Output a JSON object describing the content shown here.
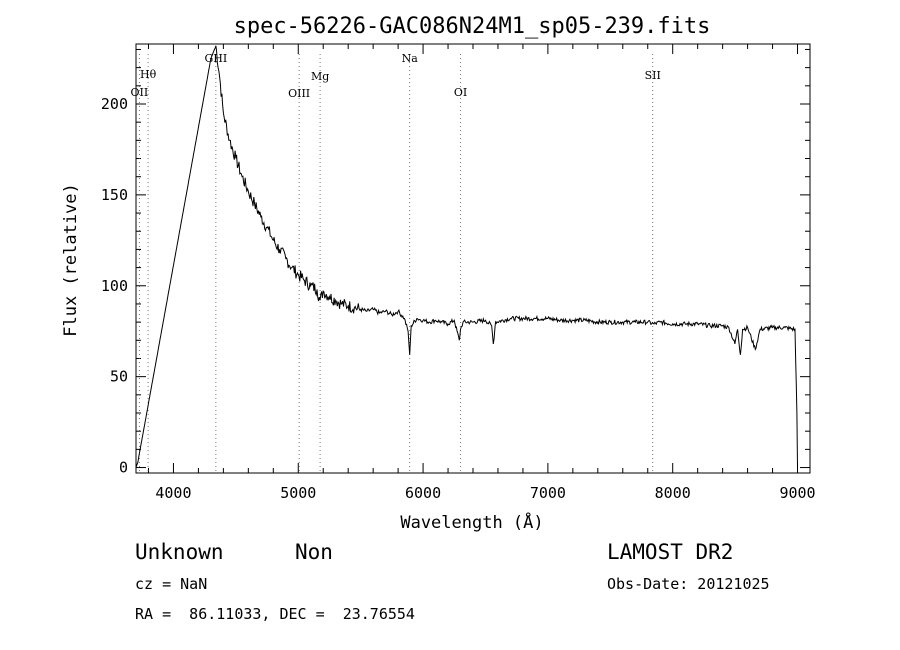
{
  "chart_data": {
    "type": "line",
    "title": "spec-56226-GAC086N24M1_sp05-239.fits",
    "xlabel": "Wavelength (Å)",
    "ylabel": "Flux (relative)",
    "xlim": [
      3700,
      9100
    ],
    "ylim": [
      -3,
      233
    ],
    "xticks": [
      4000,
      5000,
      6000,
      7000,
      8000,
      9000
    ],
    "yticks": [
      0,
      50,
      100,
      150,
      200
    ],
    "grid": false,
    "lines": [
      {
        "label": "Hθ",
        "x": 3797
      },
      {
        "label": "OII",
        "x": 3727
      },
      {
        "label": "GHI",
        "x": 4340
      },
      {
        "label": "OIII",
        "x": 5007
      },
      {
        "label": "Mg",
        "x": 5175
      },
      {
        "label": "Na",
        "x": 5893
      },
      {
        "label": "OI",
        "x": 6300
      },
      {
        "label": "SII",
        "x": 7840
      }
    ],
    "series": [
      {
        "x": [
          3700,
          3715,
          3720,
          4300,
          4340,
          4370,
          4400,
          4450,
          4500,
          4550,
          4600,
          4650,
          4700,
          4750,
          4800,
          4850,
          4900,
          4950,
          5000,
          5050,
          5100,
          5150,
          5175,
          5200,
          5250,
          5300,
          5350,
          5400,
          5450,
          5500,
          5550,
          5600,
          5650,
          5700,
          5750,
          5800,
          5850,
          5880,
          5893,
          5905,
          5950,
          6000,
          6050,
          6100,
          6150,
          6200,
          6250,
          6290,
          6300,
          6320,
          6400,
          6500,
          6550,
          6563,
          6580,
          6700,
          6800,
          6900,
          7000,
          7100,
          7200,
          7300,
          7400,
          7500,
          7600,
          7700,
          7800,
          7850,
          7900,
          8000,
          8100,
          8200,
          8300,
          8400,
          8450,
          8498,
          8520,
          8542,
          8560,
          8600,
          8662,
          8700,
          8800,
          8900,
          8980,
          8995,
          9000
        ],
        "y": [
          0,
          3,
          5,
          225,
          232,
          215,
          195,
          180,
          170,
          160,
          152,
          145,
          138,
          132,
          125,
          120,
          115,
          110,
          106,
          103,
          100,
          98,
          92,
          97,
          94,
          92,
          90,
          89,
          88,
          87,
          86,
          87,
          85,
          86,
          84,
          86,
          82,
          75,
          62,
          78,
          82,
          81,
          80,
          81,
          80,
          79,
          81,
          70,
          76,
          80,
          80,
          81,
          78,
          68,
          80,
          82,
          82,
          82,
          82,
          81,
          81,
          81,
          80,
          80,
          80,
          80,
          80,
          79,
          80,
          79,
          79,
          79,
          78,
          78,
          77,
          68,
          76,
          62,
          76,
          77,
          65,
          76,
          77,
          77,
          76,
          30,
          0
        ]
      }
    ]
  },
  "info": {
    "class": "Unknown",
    "subclass": "Non",
    "survey": "LAMOST DR2",
    "cz": "cz = NaN",
    "obs_date": "Obs-Date: 20121025",
    "coords": "RA =  86.11033, DEC =  23.76554"
  }
}
